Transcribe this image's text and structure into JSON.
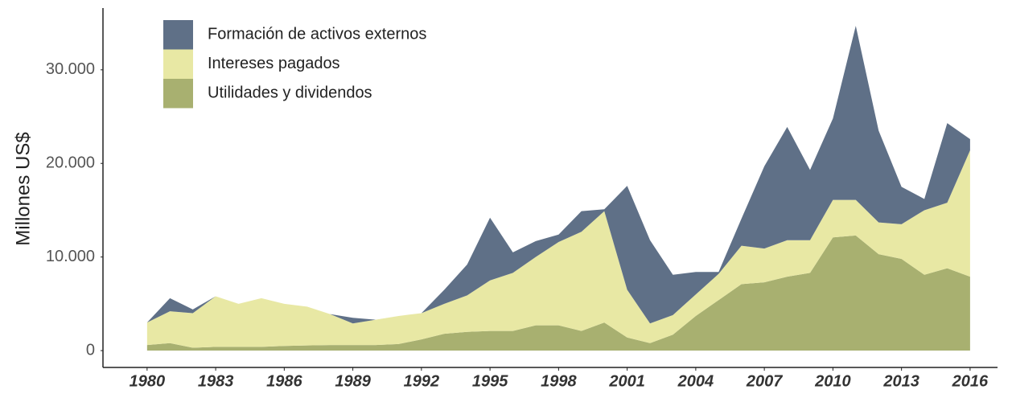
{
  "chart_data": {
    "type": "stacked_area",
    "y_label": "Millones US$",
    "x": [
      1980,
      1981,
      1982,
      1983,
      1984,
      1985,
      1986,
      1987,
      1988,
      1989,
      1990,
      1991,
      1992,
      1993,
      1994,
      1995,
      1996,
      1997,
      1998,
      1999,
      2000,
      2001,
      2002,
      2003,
      2004,
      2005,
      2006,
      2007,
      2008,
      2009,
      2010,
      2011,
      2012,
      2013,
      2014,
      2015,
      2016
    ],
    "series": [
      {
        "name": "Utilidades y dividendos",
        "color": "#a8b070",
        "values": [
          600,
          800,
          300,
          400,
          400,
          400,
          500,
          550,
          600,
          600,
          600,
          700,
          1200,
          1800,
          2000,
          2100,
          2100,
          2700,
          2700,
          2100,
          3000,
          1400,
          800,
          1700,
          3700,
          5400,
          7100,
          7300,
          7900,
          8300,
          12100,
          12300,
          10300,
          9800,
          8100,
          8800,
          7900
        ]
      },
      {
        "name": "Intereses pagados",
        "color": "#e8e8a4",
        "values": [
          2400,
          3400,
          3700,
          5400,
          4600,
          5200,
          4500,
          4150,
          3300,
          2300,
          2700,
          3000,
          2800,
          3200,
          3900,
          5400,
          6200,
          7300,
          8900,
          10600,
          11900,
          5100,
          2100,
          2100,
          2300,
          2800,
          4100,
          3600,
          3900,
          3500,
          4000,
          3800,
          3400,
          3700,
          6900,
          7000,
          13500
        ]
      },
      {
        "name": "Formación de activos externos",
        "color": "#5f7087",
        "values": [
          0,
          1400,
          400,
          0,
          0,
          0,
          0,
          0,
          0,
          600,
          0,
          0,
          0,
          1500,
          3300,
          6700,
          2200,
          1700,
          800,
          2200,
          200,
          11100,
          8900,
          4300,
          2400,
          200,
          2900,
          8800,
          12100,
          7500,
          8700,
          18600,
          9800,
          4000,
          1200,
          8500,
          1200
        ]
      }
    ],
    "xlim": [
      1978.07,
      2017.2
    ],
    "xticks": [
      1980,
      1983,
      1986,
      1989,
      1992,
      1995,
      1998,
      2001,
      2004,
      2007,
      2010,
      2013,
      2016
    ],
    "ylim": [
      -1800,
      36600
    ],
    "yticks": [
      0,
      {
        "value": 10000,
        "label": "10.000"
      },
      {
        "value": 20000,
        "label": "20.000"
      },
      {
        "value": 30000,
        "label": "30.000"
      }
    ],
    "legend": "top-left"
  }
}
